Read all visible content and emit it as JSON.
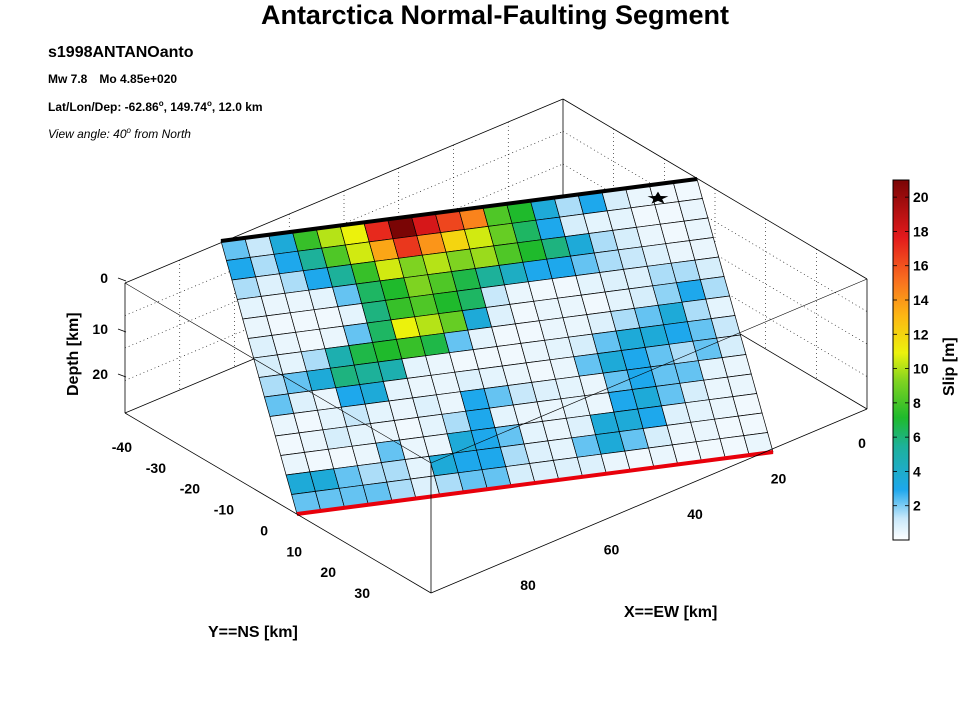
{
  "title": "Antarctica Normal-Faulting Segment",
  "info": {
    "event_id": "s1998ANTANOanto",
    "mw_label": "Mw 7.8",
    "mo_label": "Mo 4.85e+020",
    "location_prefix": "Lat/Lon/Dep: -62.86",
    "lon_text": ", 149.74",
    "dep_text": ", 12.0 km",
    "deg_symbol": "o",
    "view_text": "View angle:  40",
    "view_suffix": " from North"
  },
  "colors": {
    "top_edge": "#000000",
    "bottom_edge": "#e8000b",
    "hypocenter": "#000000"
  },
  "chart_data": {
    "type": "heatmap",
    "title": "Antarctica Normal-Faulting Segment",
    "colorbar": {
      "label": "Slip [m]",
      "range": [
        0,
        21
      ],
      "ticks": [
        2,
        4,
        6,
        8,
        10,
        12,
        14,
        16,
        18,
        20
      ],
      "colormap": "jet-white"
    },
    "axes": {
      "x": {
        "label": "X==EW [km]",
        "ticks": [
          0,
          20,
          40,
          60,
          80
        ]
      },
      "y": {
        "label": "Y==NS [km]",
        "ticks": [
          -40,
          -30,
          -20,
          -10,
          0,
          10,
          20,
          30
        ]
      },
      "z": {
        "label": "Depth [km]",
        "ticks": [
          0,
          10,
          20
        ]
      },
      "grid": true
    },
    "view_angle": "40 from North",
    "hypocenter": {
      "along_strike_cell": 18.2,
      "down_dip_cell": 0.7
    },
    "slip_grid_rows": [
      [
        1.5,
        0.8,
        2.5,
        6.5,
        9.0,
        10.0,
        16.5,
        21.0,
        17.5,
        15.5,
        13.5,
        7.0,
        6.0,
        2.5,
        1.0,
        2.0,
        0.6,
        0.3,
        0.2,
        0.2
      ],
      [
        2.0,
        1.0,
        2.0,
        4.0,
        7.0,
        9.5,
        12.5,
        16.0,
        13.0,
        11.0,
        9.5,
        7.5,
        5.0,
        2.0,
        0.6,
        0.4,
        0.4,
        0.2,
        0.2,
        0.3
      ],
      [
        1.0,
        0.5,
        1.0,
        2.0,
        4.0,
        6.5,
        9.5,
        8.0,
        9.0,
        8.0,
        8.5,
        7.0,
        6.0,
        4.5,
        2.5,
        1.0,
        0.6,
        0.3,
        0.2,
        0.3
      ],
      [
        0.4,
        0.3,
        0.3,
        0.4,
        1.5,
        5.0,
        6.0,
        8.0,
        7.0,
        5.5,
        4.0,
        3.0,
        2.0,
        2.0,
        1.5,
        1.0,
        0.8,
        0.5,
        0.3,
        0.3
      ],
      [
        0.3,
        0.2,
        0.2,
        0.2,
        0.4,
        4.5,
        6.5,
        7.0,
        6.0,
        5.0,
        0.8,
        0.3,
        0.2,
        0.2,
        0.4,
        0.5,
        0.5,
        1.0,
        1.0,
        0.6
      ],
      [
        0.5,
        0.3,
        0.2,
        0.3,
        1.5,
        5.0,
        10.0,
        9.0,
        7.5,
        2.5,
        0.5,
        0.2,
        0.3,
        0.3,
        0.2,
        0.4,
        0.6,
        1.2,
        2.0,
        1.0
      ],
      [
        0.6,
        0.4,
        1.0,
        3.5,
        5.5,
        6.0,
        6.5,
        5.5,
        1.5,
        0.4,
        0.2,
        0.2,
        0.3,
        0.3,
        0.5,
        1.0,
        1.5,
        2.5,
        1.0,
        0.4
      ],
      [
        1.0,
        1.5,
        2.5,
        4.5,
        4.0,
        3.5,
        0.4,
        0.3,
        0.2,
        0.2,
        0.2,
        0.3,
        0.4,
        0.6,
        1.5,
        2.5,
        2.5,
        2.0,
        1.5,
        0.8
      ],
      [
        1.5,
        0.5,
        0.3,
        2.0,
        2.5,
        0.4,
        0.3,
        0.3,
        0.5,
        0.4,
        0.3,
        0.2,
        0.3,
        1.5,
        2.5,
        2.0,
        1.5,
        1.0,
        1.5,
        0.6
      ],
      [
        0.3,
        0.2,
        0.4,
        0.8,
        0.4,
        0.3,
        0.5,
        0.3,
        2.0,
        1.5,
        0.8,
        0.5,
        0.4,
        0.3,
        1.5,
        2.0,
        1.5,
        1.5,
        0.4,
        0.3
      ],
      [
        0.2,
        0.3,
        0.6,
        0.4,
        0.3,
        0.2,
        0.4,
        1.0,
        2.0,
        0.4,
        0.3,
        0.3,
        0.4,
        0.3,
        2.0,
        2.5,
        1.5,
        0.6,
        0.3,
        0.3
      ],
      [
        0.3,
        0.2,
        0.2,
        0.3,
        1.5,
        0.3,
        0.3,
        2.5,
        2.0,
        1.5,
        0.4,
        0.3,
        0.5,
        2.5,
        2.5,
        2.0,
        0.5,
        0.4,
        0.3,
        0.2
      ],
      [
        2.5,
        2.5,
        1.5,
        1.0,
        1.0,
        0.4,
        2.5,
        2.0,
        2.0,
        1.0,
        0.5,
        0.4,
        1.5,
        2.5,
        1.5,
        0.6,
        0.3,
        0.3,
        0.2,
        0.2
      ],
      [
        1.5,
        1.5,
        1.5,
        1.5,
        1.0,
        0.5,
        1.0,
        1.5,
        1.5,
        0.6,
        0.5,
        0.5,
        0.5,
        0.3,
        0.2,
        0.3,
        0.2,
        0.2,
        0.2,
        0.3
      ]
    ]
  }
}
